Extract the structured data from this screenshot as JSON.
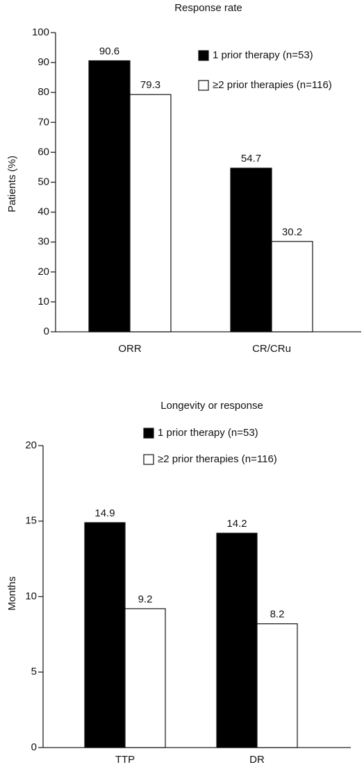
{
  "chart_data": [
    {
      "type": "bar",
      "title": "Response rate",
      "ylabel": "Patients (%)",
      "categories": [
        "ORR",
        "CR/CRu"
      ],
      "series": [
        {
          "name": "1 prior therapy (n=53)",
          "color": "#000000",
          "values": [
            90.6,
            54.7
          ]
        },
        {
          "name": "≥2 prior therapies (n=116)",
          "color": "#ffffff",
          "values": [
            79.3,
            30.2
          ]
        }
      ],
      "ylim": [
        0,
        100
      ],
      "yticks": [
        0,
        10,
        20,
        30,
        40,
        50,
        60,
        70,
        80,
        90,
        100
      ]
    },
    {
      "type": "bar",
      "title": "Longevity or response",
      "ylabel": "Months",
      "categories": [
        "TTP",
        "DR"
      ],
      "series": [
        {
          "name": "1 prior therapy (n=53)",
          "color": "#000000",
          "values": [
            14.9,
            14.2
          ]
        },
        {
          "name": "≥2 prior therapies (n=116)",
          "color": "#ffffff",
          "values": [
            9.2,
            8.2
          ]
        }
      ],
      "ylim": [
        0,
        20
      ],
      "yticks": [
        0,
        5,
        10,
        15,
        20
      ]
    }
  ]
}
